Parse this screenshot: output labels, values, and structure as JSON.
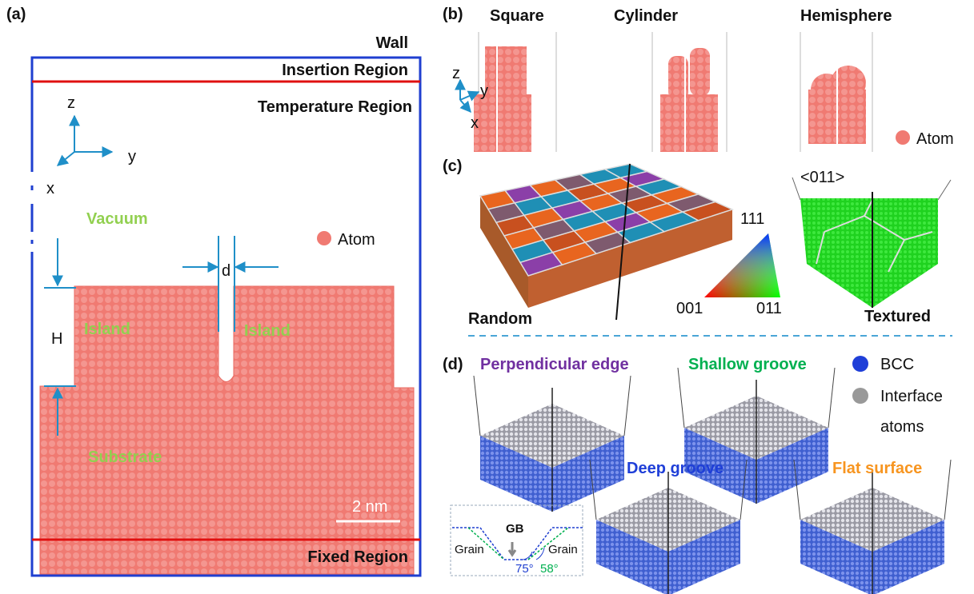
{
  "panel_a": {
    "label": "(a)",
    "wall": "Wall",
    "insertion_region": "Insertion Region",
    "temperature_region": "Temperature Region",
    "axes": {
      "z": "z",
      "y": "y",
      "x": "x"
    },
    "vacuum": "Vacuum",
    "legend_atom": "Atom",
    "d": "d",
    "h": "H",
    "islands": [
      "Island",
      "Island"
    ],
    "substrate": "Substrate",
    "scale_bar": "2 nm",
    "fixed_region": "Fixed Region"
  },
  "panel_b": {
    "label": "(b)",
    "shapes": [
      "Square",
      "Cylinder",
      "Hemisphere"
    ],
    "axes": {
      "z": "z",
      "y": "y",
      "x": "x"
    },
    "legend_atom": "Atom"
  },
  "panel_c": {
    "label": "(c)",
    "orientation": "<011>",
    "triangle_labels": {
      "top": "111",
      "left": "001",
      "right": "011"
    },
    "random": "Random",
    "textured": "Textured"
  },
  "panel_d": {
    "label": "(d)",
    "cases": [
      "Perpendicular edge",
      "Shallow groove",
      "Deep groove",
      "Flat surface"
    ],
    "legend": {
      "bcc": "BCC",
      "interface": [
        "Interface",
        "atoms"
      ]
    },
    "inset": {
      "gb": "GB",
      "grains": [
        "Grain",
        "Grain"
      ],
      "angles": [
        "75°",
        "58°"
      ]
    }
  }
}
